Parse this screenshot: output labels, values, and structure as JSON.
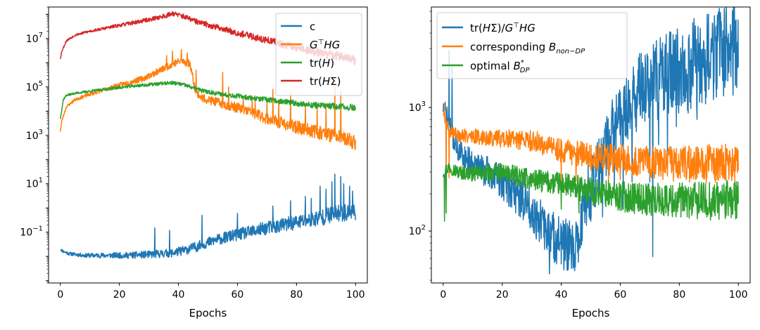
{
  "chart_data": [
    {
      "type": "line",
      "yscale": "log",
      "xlabel": "Epochs",
      "xlim": [
        -4,
        104
      ],
      "ylim": [
        0.0008,
        200000000
      ],
      "x_ticks": [
        0,
        20,
        40,
        60,
        80,
        100
      ],
      "x_tick_labels": [
        "0",
        "20",
        "40",
        "60",
        "80",
        "100"
      ],
      "y_ticks": [
        0.1,
        10,
        1000,
        100000,
        10000000
      ],
      "y_tick_labels": [
        {
          "base": "10",
          "exp": "−1"
        },
        {
          "base": "10",
          "exp": "1"
        },
        {
          "base": "10",
          "exp": "3"
        },
        {
          "base": "10",
          "exp": "5"
        },
        {
          "base": "10",
          "exp": "7"
        }
      ],
      "legend_position": "top-right",
      "series": [
        {
          "name": "c",
          "label": {
            "text": "c"
          },
          "color": "#1f77b4",
          "anchors": [
            [
              0,
              0.02
            ],
            [
              1,
              0.016
            ],
            [
              3,
              0.013
            ],
            [
              8,
              0.011
            ],
            [
              15,
              0.011
            ],
            [
              22,
              0.011
            ],
            [
              30,
              0.012
            ],
            [
              38,
              0.014
            ],
            [
              42,
              0.018
            ],
            [
              46,
              0.025
            ],
            [
              52,
              0.045
            ],
            [
              58,
              0.07
            ],
            [
              64,
              0.1
            ],
            [
              70,
              0.15
            ],
            [
              76,
              0.2
            ],
            [
              82,
              0.28
            ],
            [
              88,
              0.4
            ],
            [
              94,
              0.6
            ],
            [
              100,
              0.7
            ]
          ],
          "noise": [
            0.06,
            0.38
          ],
          "seed": 11,
          "spikes": [
            [
              32,
              0.15
            ],
            [
              37,
              0.12
            ],
            [
              48,
              0.5
            ],
            [
              60,
              0.6
            ],
            [
              72,
              1.2
            ],
            [
              78,
              2.0
            ],
            [
              83,
              3.0
            ],
            [
              85,
              2.5
            ],
            [
              88,
              8.0
            ],
            [
              90,
              6.0
            ],
            [
              92,
              12.0
            ],
            [
              93,
              25.0
            ],
            [
              95,
              20.0
            ],
            [
              96,
              10.0
            ],
            [
              98,
              8.0
            ],
            [
              99,
              5.0
            ]
          ]
        },
        {
          "name": "G^T HG",
          "label": {
            "pre": "G",
            "sup": "⊤",
            "post": "HG"
          },
          "color": "#ff7f0e",
          "anchors": [
            [
              0,
              1500
            ],
            [
              0.5,
              4000
            ],
            [
              2,
              15000
            ],
            [
              5,
              30000
            ],
            [
              10,
              50000
            ],
            [
              20,
              120000
            ],
            [
              28,
              220000
            ],
            [
              34,
              500000
            ],
            [
              38,
              900000
            ],
            [
              41,
              1200000
            ],
            [
              44,
              900000
            ],
            [
              45,
              200000
            ],
            [
              46,
              60000
            ],
            [
              48,
              35000
            ],
            [
              55,
              20000
            ],
            [
              62,
              12000
            ],
            [
              70,
              5000
            ],
            [
              78,
              2500
            ],
            [
              86,
              1500
            ],
            [
              94,
              900
            ],
            [
              100,
              500
            ]
          ],
          "noise": [
            0.05,
            0.32
          ],
          "seed": 23,
          "spikes": [
            [
              36,
              2000000
            ],
            [
              38,
              3000000
            ],
            [
              41,
              3500000
            ],
            [
              43,
              2500000
            ],
            [
              46,
              500000
            ],
            [
              55,
              400000
            ],
            [
              57,
              100000
            ],
            [
              62,
              30000
            ],
            [
              65,
              40000
            ],
            [
              66,
              25000
            ],
            [
              70,
              30000
            ],
            [
              72,
              80000
            ],
            [
              74,
              25000
            ],
            [
              78,
              60000
            ],
            [
              83,
              20000
            ],
            [
              87,
              15000
            ],
            [
              90,
              20000
            ],
            [
              93,
              100000
            ],
            [
              95,
              70000
            ]
          ]
        },
        {
          "name": "tr(H)",
          "label": {
            "pre": "tr(",
            "it": "H",
            "post": ")"
          },
          "color": "#2ca02c",
          "anchors": [
            [
              0,
              5000
            ],
            [
              1,
              30000
            ],
            [
              2,
              45000
            ],
            [
              5,
              55000
            ],
            [
              15,
              80000
            ],
            [
              25,
              110000
            ],
            [
              35,
              140000
            ],
            [
              38,
              150000
            ],
            [
              42,
              120000
            ],
            [
              48,
              70000
            ],
            [
              55,
              50000
            ],
            [
              65,
              35000
            ],
            [
              75,
              25000
            ],
            [
              85,
              18000
            ],
            [
              100,
              14000
            ]
          ],
          "noise": [
            0.04,
            0.14
          ],
          "seed": 37,
          "spikes": []
        },
        {
          "name": "tr(HΣ)",
          "label": {
            "pre": "tr(",
            "it": "H",
            "post": "Σ)"
          },
          "color": "#d62728",
          "anchors": [
            [
              0,
              1500000
            ],
            [
              0.5,
              3000000
            ],
            [
              2,
              8000000
            ],
            [
              5,
              14000000
            ],
            [
              10,
              20000000
            ],
            [
              20,
              35000000
            ],
            [
              30,
              60000000
            ],
            [
              36,
              90000000
            ],
            [
              38,
              110000000
            ],
            [
              42,
              80000000
            ],
            [
              46,
              50000000
            ],
            [
              55,
              25000000
            ],
            [
              65,
              12000000
            ],
            [
              75,
              6000000
            ],
            [
              85,
              3000000
            ],
            [
              95,
              1800000
            ],
            [
              100,
              1200000
            ]
          ],
          "noise": [
            0.04,
            0.2
          ],
          "seed": 53,
          "spikes": []
        }
      ]
    },
    {
      "type": "line",
      "yscale": "log",
      "xlabel": "Epochs",
      "xlim": [
        -4,
        104
      ],
      "ylim": [
        38,
        6500
      ],
      "x_ticks": [
        0,
        20,
        40,
        60,
        80,
        100
      ],
      "x_tick_labels": [
        "0",
        "20",
        "40",
        "60",
        "80",
        "100"
      ],
      "y_ticks": [
        100,
        1000
      ],
      "y_tick_labels": [
        {
          "base": "10",
          "exp": "2"
        },
        {
          "base": "10",
          "exp": "3"
        }
      ],
      "legend_position": "top-left",
      "series": [
        {
          "name": "tr(HΣ)/G^T HG",
          "label": {
            "pre": "tr(",
            "it": "H",
            "post": "Σ)/",
            "it2": "G",
            "sup": "⊤",
            "post2": "HG"
          },
          "color": "#1f77b4",
          "anchors": [
            [
              0,
              1000
            ],
            [
              1,
              900
            ],
            [
              3,
              600
            ],
            [
              5,
              450
            ],
            [
              10,
              350
            ],
            [
              15,
              300
            ],
            [
              20,
              250
            ],
            [
              25,
              200
            ],
            [
              30,
              150
            ],
            [
              35,
              100
            ],
            [
              40,
              80
            ],
            [
              44,
              70
            ],
            [
              46,
              90
            ],
            [
              48,
              180
            ],
            [
              52,
              280
            ],
            [
              56,
              500
            ],
            [
              58,
              700
            ],
            [
              62,
              1000
            ],
            [
              68,
              1500
            ],
            [
              75,
              1800
            ],
            [
              80,
              2000
            ],
            [
              85,
              2300
            ],
            [
              90,
              2600
            ],
            [
              95,
              3000
            ],
            [
              100,
              3000
            ]
          ],
          "noise": [
            0.08,
            0.42
          ],
          "seed": 71,
          "spikes": [
            [
              2,
              2900
            ],
            [
              3,
              2200
            ],
            [
              36,
              45
            ],
            [
              42,
              48
            ],
            [
              44,
              50
            ],
            [
              46,
              70
            ],
            [
              50,
              120
            ],
            [
              54,
              130
            ],
            [
              58,
              200
            ],
            [
              61,
              150
            ],
            [
              64,
              250
            ],
            [
              70,
              250
            ],
            [
              71,
              62
            ],
            [
              73,
              500
            ],
            [
              76,
              400
            ],
            [
              79,
              700
            ],
            [
              83,
              900
            ],
            [
              86,
              800
            ],
            [
              90,
              1400
            ],
            [
              94,
              5500
            ],
            [
              96,
              4500
            ]
          ]
        },
        {
          "name": "corresponding B_non-DP",
          "label": {
            "pre": "corresponding ",
            "it": "B",
            "sub": "non−DP"
          },
          "color": "#ff7f0e",
          "anchors": [
            [
              0,
              900
            ],
            [
              2,
              650
            ],
            [
              5,
              600
            ],
            [
              10,
              580
            ],
            [
              20,
              560
            ],
            [
              30,
              540
            ],
            [
              40,
              450
            ],
            [
              50,
              400
            ],
            [
              60,
              380
            ],
            [
              70,
              360
            ],
            [
              80,
              350
            ],
            [
              90,
              350
            ],
            [
              100,
              360
            ]
          ],
          "noise": [
            0.05,
            0.17
          ],
          "seed": 89,
          "spikes": [
            [
              0.5,
              1050
            ],
            [
              1,
              220
            ],
            [
              2,
              270
            ],
            [
              40,
              230
            ],
            [
              45,
              250
            ],
            [
              56,
              250
            ],
            [
              60,
              260
            ]
          ]
        },
        {
          "name": "optimal B*_DP",
          "label": {
            "pre": "optimal ",
            "it": "B",
            "sup": "*",
            "sub": "DP"
          },
          "color": "#2ca02c",
          "anchors": [
            [
              0,
              300
            ],
            [
              2,
              330
            ],
            [
              5,
              300
            ],
            [
              10,
              290
            ],
            [
              20,
              300
            ],
            [
              30,
              260
            ],
            [
              40,
              240
            ],
            [
              50,
              210
            ],
            [
              60,
              190
            ],
            [
              70,
              180
            ],
            [
              80,
              175
            ],
            [
              90,
              175
            ],
            [
              100,
              180
            ]
          ],
          "noise": [
            0.05,
            0.17
          ],
          "seed": 97,
          "spikes": [
            [
              0.5,
              120
            ],
            [
              1,
              140
            ],
            [
              40,
              150
            ],
            [
              46,
              140
            ]
          ]
        }
      ]
    }
  ]
}
